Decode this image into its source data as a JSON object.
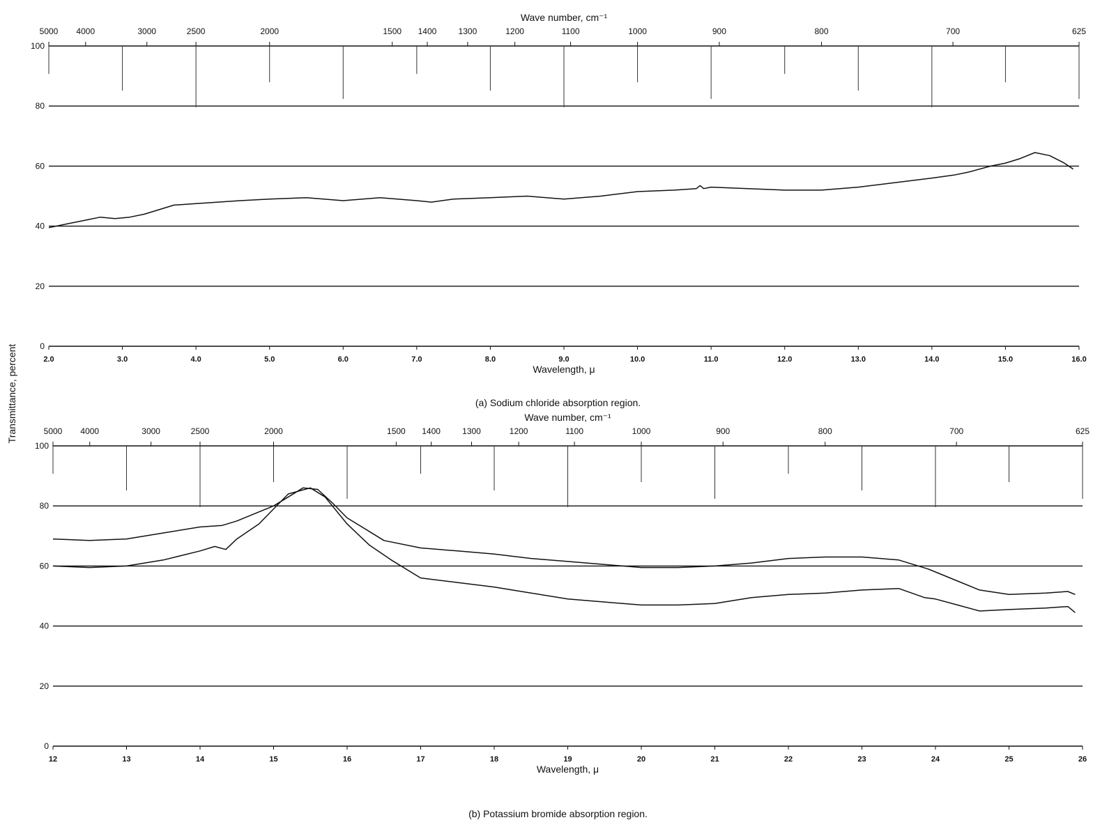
{
  "ylabel": "Transmittance, percent",
  "chart_data": [
    {
      "id": "a",
      "type": "line",
      "caption": "(a) Sodium chloride absorption region.",
      "xlabel": "Wavelength, μ",
      "top_axis_label": "Wave number, cm⁻¹",
      "xlim": [
        2.0,
        16.0
      ],
      "ylim": [
        0,
        100
      ],
      "x_ticks": [
        2.0,
        3.0,
        4.0,
        5.0,
        6.0,
        7.0,
        8.0,
        9.0,
        10.0,
        11.0,
        12.0,
        13.0,
        14.0,
        15.0,
        16.0
      ],
      "x_tick_labels": [
        "2.0",
        "3.0",
        "4.0",
        "5.0",
        "6.0",
        "7.0",
        "8.0",
        "9.0",
        "10.0",
        "11.0",
        "12.0",
        "13.0",
        "14.0",
        "15.0",
        "16.0"
      ],
      "y_ticks": [
        0,
        20,
        40,
        60,
        80,
        100
      ],
      "y_tick_labels": [
        "0",
        "20",
        "40",
        "60",
        "80",
        "100"
      ],
      "top_ticks": [
        {
          "label": "5000",
          "x": 2.0
        },
        {
          "label": "4000",
          "x": 2.5
        },
        {
          "label": "3000",
          "x": 3.333
        },
        {
          "label": "2500",
          "x": 4.0
        },
        {
          "label": "2000",
          "x": 5.0
        },
        {
          "label": "1500",
          "x": 6.667
        },
        {
          "label": "1400",
          "x": 7.143
        },
        {
          "label": "1300",
          "x": 7.692
        },
        {
          "label": "1200",
          "x": 8.333
        },
        {
          "label": "1100",
          "x": 9.091
        },
        {
          "label": "1000",
          "x": 10.0
        },
        {
          "label": "900",
          "x": 11.111
        },
        {
          "label": "800",
          "x": 12.5
        },
        {
          "label": "700",
          "x": 14.286
        },
        {
          "label": "625",
          "x": 16.0
        }
      ],
      "grid": true,
      "series": [
        {
          "x": [
            2.0,
            2.2,
            2.5,
            2.7,
            2.9,
            3.1,
            3.3,
            3.5,
            3.7,
            4.0,
            4.3,
            4.6,
            5.0,
            5.5,
            6.0,
            6.5,
            7.0,
            7.2,
            7.5,
            8.0,
            8.5,
            9.0,
            9.5,
            10.0,
            10.5,
            10.8,
            10.85,
            10.9,
            11.0,
            11.5,
            12.0,
            12.5,
            13.0,
            13.5,
            14.0,
            14.3,
            14.5,
            14.8,
            15.0,
            15.2,
            15.4,
            15.6,
            15.8,
            15.92
          ],
          "y": [
            39.5,
            40.5,
            42,
            43,
            42.5,
            43,
            44,
            45.5,
            47,
            47.5,
            48,
            48.5,
            49,
            49.5,
            48.5,
            49.5,
            48.5,
            48,
            49,
            49.5,
            50,
            49,
            50,
            51.5,
            52,
            52.5,
            53.5,
            52.5,
            53,
            52.5,
            52,
            52,
            53,
            54.5,
            56,
            57,
            58,
            60,
            61,
            62.5,
            64.5,
            63.5,
            61,
            59
          ]
        }
      ]
    },
    {
      "id": "b",
      "type": "line",
      "caption": "(b) Potassium bromide absorption region.",
      "xlabel": "Wavelength, μ",
      "top_axis_label": "Wave number, cm⁻¹",
      "xlim": [
        12,
        26
      ],
      "ylim": [
        0,
        100
      ],
      "x_ticks": [
        12,
        13,
        14,
        15,
        16,
        17,
        18,
        19,
        20,
        21,
        22,
        23,
        24,
        25,
        26
      ],
      "x_tick_labels": [
        "12",
        "13",
        "14",
        "15",
        "16",
        "17",
        "18",
        "19",
        "20",
        "21",
        "22",
        "23",
        "24",
        "25",
        "26"
      ],
      "y_ticks": [
        0,
        20,
        40,
        60,
        80,
        100
      ],
      "y_tick_labels": [
        "0",
        "20",
        "40",
        "60",
        "80",
        "100"
      ],
      "top_ticks": [
        {
          "label": "5000",
          "x": 12.0
        },
        {
          "label": "4000",
          "x": 12.5
        },
        {
          "label": "3000",
          "x": 13.333
        },
        {
          "label": "2500",
          "x": 14.0
        },
        {
          "label": "2000",
          "x": 15.0
        },
        {
          "label": "1500",
          "x": 16.667
        },
        {
          "label": "1400",
          "x": 17.143
        },
        {
          "label": "1300",
          "x": 17.692
        },
        {
          "label": "1200",
          "x": 18.333
        },
        {
          "label": "1100",
          "x": 19.091
        },
        {
          "label": "1000",
          "x": 20.0
        },
        {
          "label": "900",
          "x": 21.111
        },
        {
          "label": "800",
          "x": 22.5
        },
        {
          "label": "700",
          "x": 24.286
        },
        {
          "label": "625",
          "x": 26.0
        }
      ],
      "grid": true,
      "series": [
        {
          "x": [
            12.0,
            12.5,
            13.0,
            13.5,
            14.0,
            14.3,
            14.5,
            14.8,
            15.0,
            15.2,
            15.4,
            15.6,
            15.8,
            16.0,
            16.3,
            16.5,
            17.0,
            17.5,
            18.0,
            18.5,
            19.0,
            19.5,
            20.0,
            20.5,
            21.0,
            21.5,
            22.0,
            22.5,
            23.0,
            23.5,
            23.9,
            24.0,
            24.3,
            24.6,
            25.0,
            25.5,
            25.8,
            25.9
          ],
          "y": [
            69,
            68.5,
            69,
            71,
            73,
            73.5,
            75,
            78,
            80,
            83,
            86,
            85.5,
            81,
            76,
            71.5,
            68.5,
            66,
            65,
            64,
            62.5,
            61.5,
            60.5,
            59.5,
            59.5,
            60,
            61,
            62.5,
            63,
            63,
            62,
            59,
            58,
            55,
            52,
            50.5,
            51,
            51.5,
            50.5
          ]
        },
        {
          "x": [
            12.0,
            12.5,
            13.0,
            13.5,
            14.0,
            14.2,
            14.35,
            14.5,
            14.8,
            15.0,
            15.2,
            15.5,
            15.7,
            16.0,
            16.3,
            16.6,
            17.0,
            17.5,
            18.0,
            18.5,
            19.0,
            19.5,
            20.0,
            20.5,
            21.0,
            21.5,
            22.0,
            22.5,
            23.0,
            23.5,
            23.85,
            24.0,
            24.3,
            24.6,
            25.0,
            25.5,
            25.8,
            25.9
          ],
          "y": [
            60,
            59.5,
            60,
            62,
            65,
            66.5,
            65.5,
            69,
            74,
            79,
            84,
            86,
            83,
            74,
            67,
            62,
            56,
            54.5,
            53,
            51,
            49,
            48,
            47,
            47,
            47.5,
            49.5,
            50.5,
            51,
            52,
            52.5,
            49.5,
            49,
            47,
            45,
            45.5,
            46,
            46.5,
            44.5
          ]
        }
      ]
    }
  ]
}
